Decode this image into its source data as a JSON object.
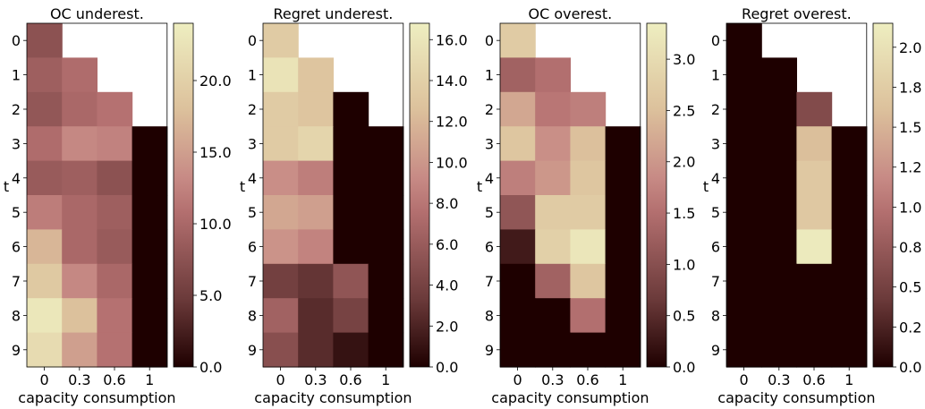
{
  "chart_data": [
    {
      "type": "heatmap",
      "title": "OC underest.",
      "xlabel": "capacity consumption",
      "ylabel": "t",
      "x_categories": [
        "0",
        "0.3",
        "0.6",
        "1"
      ],
      "y_categories": [
        "0",
        "1",
        "2",
        "3",
        "4",
        "5",
        "6",
        "7",
        "8",
        "9"
      ],
      "values": [
        [
          7.5,
          null,
          null,
          null
        ],
        [
          9.0,
          10.5,
          null,
          null
        ],
        [
          8.0,
          10.0,
          11.0,
          null
        ],
        [
          10.5,
          13.0,
          12.5,
          0.0
        ],
        [
          8.5,
          9.0,
          7.5,
          0.0
        ],
        [
          12.0,
          10.0,
          9.0,
          0.0
        ],
        [
          17.0,
          10.0,
          8.5,
          0.0
        ],
        [
          19.0,
          13.0,
          10.0,
          0.0
        ],
        [
          23.0,
          18.0,
          11.0,
          0.0
        ],
        [
          21.5,
          15.0,
          11.0,
          0.0
        ]
      ],
      "vmin": 0,
      "vmax": 24,
      "colorbar_ticks": [
        "0.0",
        "5.0",
        "10.0",
        "15.0",
        "20.0"
      ],
      "colorbar_tick_values": [
        0,
        5,
        10,
        15,
        20
      ]
    },
    {
      "type": "heatmap",
      "title": "Regret underest.",
      "xlabel": "capacity consumption",
      "ylabel": "t",
      "x_categories": [
        "0",
        "0.3",
        "0.6",
        "1"
      ],
      "y_categories": [
        "0",
        "1",
        "2",
        "3",
        "4",
        "5",
        "6",
        "7",
        "8",
        "9"
      ],
      "values": [
        [
          13.5,
          null,
          null,
          null
        ],
        [
          15.8,
          13.0,
          null,
          null
        ],
        [
          13.5,
          13.0,
          0.0,
          null
        ],
        [
          13.5,
          14.5,
          0.0,
          0.0
        ],
        [
          9.5,
          8.5,
          0.0,
          0.0
        ],
        [
          11.0,
          10.5,
          0.0,
          0.0
        ],
        [
          9.8,
          8.8,
          0.0,
          0.0
        ],
        [
          3.8,
          3.0,
          5.5,
          0.0
        ],
        [
          6.5,
          2.5,
          4.0,
          0.0
        ],
        [
          5.0,
          2.5,
          1.0,
          0.0
        ]
      ],
      "vmin": 0,
      "vmax": 16.8,
      "colorbar_ticks": [
        "0.0",
        "2.0",
        "4.0",
        "6.0",
        "8.0",
        "10.0",
        "12.0",
        "14.0",
        "16.0"
      ],
      "colorbar_tick_values": [
        0,
        2,
        4,
        6,
        8,
        10,
        12,
        14,
        16
      ]
    },
    {
      "type": "heatmap",
      "title": "OC overest.",
      "xlabel": "capacity consumption",
      "ylabel": "t",
      "x_categories": [
        "0",
        "0.3",
        "0.6",
        "1"
      ],
      "y_categories": [
        "0",
        "1",
        "2",
        "3",
        "4",
        "5",
        "6",
        "7",
        "8",
        "9"
      ],
      "values": [
        [
          2.7,
          null,
          null,
          null
        ],
        [
          1.3,
          1.5,
          null,
          null
        ],
        [
          2.2,
          1.6,
          1.7,
          null
        ],
        [
          2.6,
          1.9,
          2.5,
          0.0
        ],
        [
          1.7,
          2.0,
          2.6,
          0.0
        ],
        [
          1.1,
          2.7,
          2.7,
          0.0
        ],
        [
          0.3,
          2.8,
          3.2,
          0.0
        ],
        [
          0.0,
          1.3,
          2.6,
          0.0
        ],
        [
          0.0,
          0.0,
          1.5,
          0.0
        ],
        [
          0.0,
          0.0,
          0.0,
          0.0
        ]
      ],
      "vmin": 0,
      "vmax": 3.35,
      "colorbar_ticks": [
        "0.0",
        "0.5",
        "1.0",
        "1.5",
        "2.0",
        "2.5",
        "3.0"
      ],
      "colorbar_tick_values": [
        0,
        0.5,
        1.0,
        1.5,
        2.0,
        2.5,
        3.0
      ]
    },
    {
      "type": "heatmap",
      "title": "Regret overest.",
      "xlabel": "capacity consumption",
      "ylabel": "t",
      "x_categories": [
        "0",
        "0.3",
        "0.6",
        "1"
      ],
      "y_categories": [
        "0",
        "1",
        "2",
        "3",
        "4",
        "5",
        "6",
        "7",
        "8",
        "9"
      ],
      "values": [
        [
          0.0,
          null,
          null,
          null
        ],
        [
          0.0,
          0.0,
          null,
          null
        ],
        [
          0.0,
          0.0,
          0.6,
          null
        ],
        [
          0.0,
          0.0,
          1.6,
          0.0
        ],
        [
          0.0,
          0.0,
          1.7,
          0.0
        ],
        [
          0.0,
          0.0,
          1.7,
          0.0
        ],
        [
          0.0,
          0.0,
          2.1,
          0.0
        ],
        [
          0.0,
          0.0,
          0.0,
          0.0
        ],
        [
          0.0,
          0.0,
          0.0,
          0.0
        ],
        [
          0.0,
          0.0,
          0.0,
          0.0
        ]
      ],
      "vmin": 0,
      "vmax": 2.15,
      "colorbar_ticks": [
        "0.0",
        "0.2",
        "0.5",
        "0.8",
        "1.0",
        "1.2",
        "1.5",
        "1.8",
        "2.0"
      ],
      "colorbar_tick_values": [
        0,
        0.25,
        0.5,
        0.75,
        1.0,
        1.25,
        1.5,
        1.75,
        2.0
      ]
    }
  ]
}
